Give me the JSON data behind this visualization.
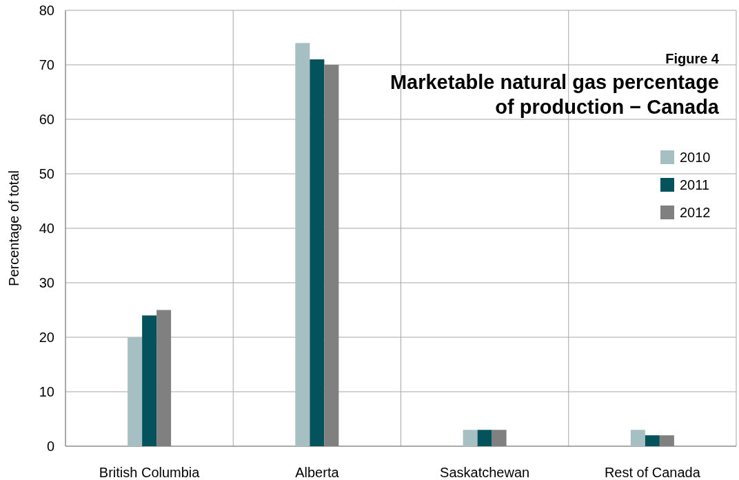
{
  "chart_data": {
    "type": "bar",
    "subtitle": "Figure 4",
    "title": "Marketable natural gas percentage of production − Canada",
    "ylabel": "Percentage of total",
    "categories": [
      "British Columbia",
      "Alberta",
      "Saskatchewan",
      "Rest of Canada"
    ],
    "series": [
      {
        "name": "2010",
        "color": "#a6bfc3",
        "values": [
          20,
          74,
          3,
          3
        ]
      },
      {
        "name": "2011",
        "color": "#04535c",
        "values": [
          24,
          71,
          3,
          2
        ]
      },
      {
        "name": "2012",
        "color": "#808080",
        "values": [
          25,
          70,
          3,
          2
        ]
      }
    ],
    "ylim": [
      0,
      80
    ],
    "yticks": [
      0,
      10,
      20,
      30,
      40,
      50,
      60,
      70,
      80
    ],
    "grid": true,
    "legend": "top right"
  }
}
